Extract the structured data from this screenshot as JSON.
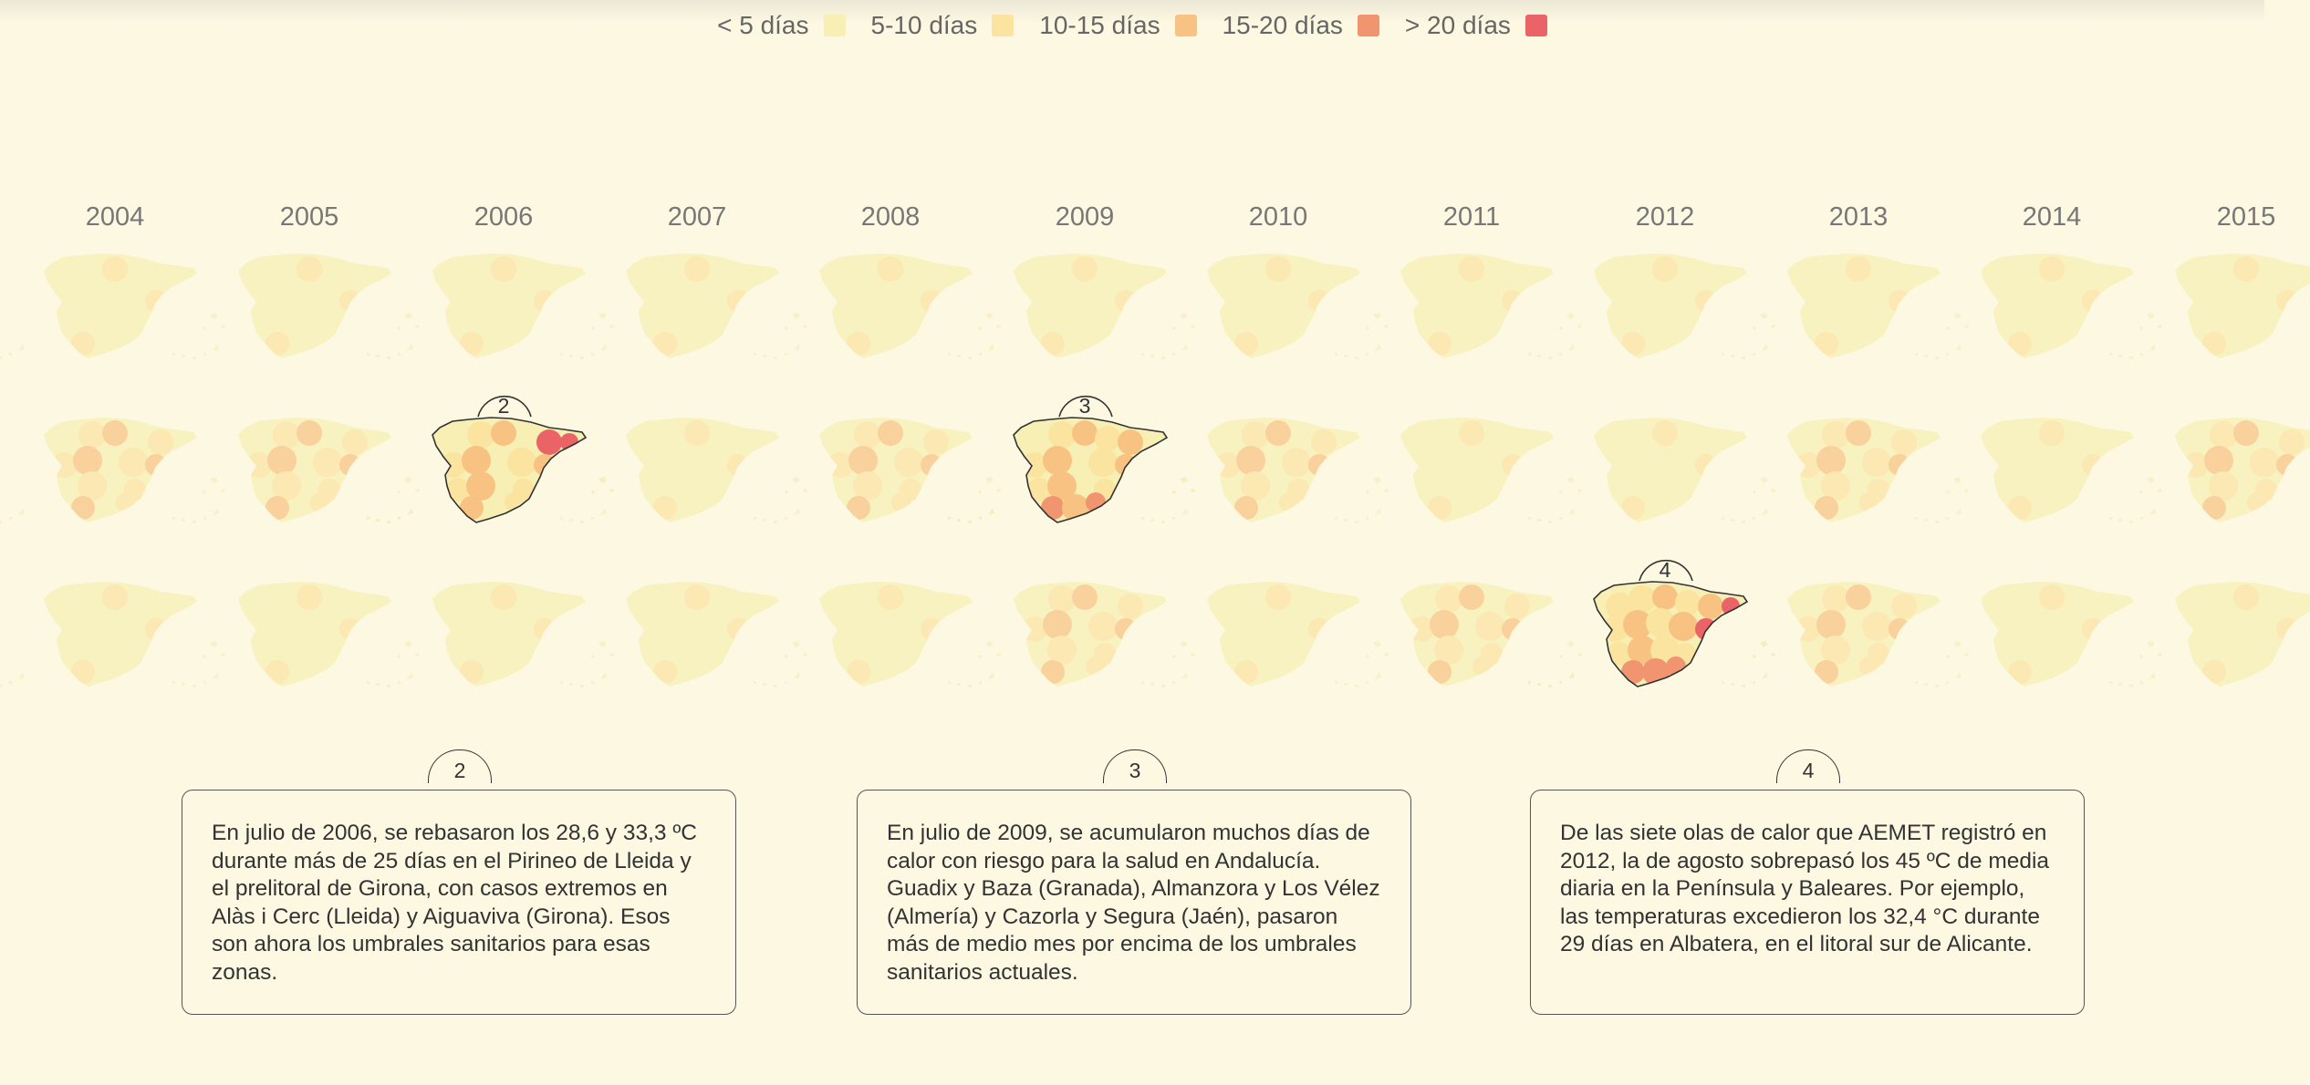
{
  "legend": [
    {
      "label": "< 5 días",
      "color": "#f7efb3"
    },
    {
      "label": "5-10 días",
      "color": "#fbe3a0"
    },
    {
      "label": "10-15 días",
      "color": "#f8c382"
    },
    {
      "label": "15-20 días",
      "color": "#f19470"
    },
    {
      "label": "> 20 días",
      "color": "#ea6467"
    }
  ],
  "years": [
    "2004",
    "2005",
    "2006",
    "2007",
    "2008",
    "2009",
    "2010",
    "2011",
    "2012",
    "2013",
    "2014",
    "2015"
  ],
  "highlights": [
    {
      "number": "2",
      "year": "2006",
      "text": "En julio de 2006, se rebasaron los 28,6 y 33,3 ºC durante más de 25 días en el Pirineo de Lleida y el prelitoral de Girona, con casos extremos en Alàs i Cerc (Lleida) y Aiguaviva (Girona). Esos son ahora los umbrales sanitarios para esas zonas."
    },
    {
      "number": "3",
      "year": "2009",
      "text": "En julio de 2009, se acumularon muchos días de calor con riesgo para la salud en Andalucía. Guadix y Baza (Granada), Almanzora y Los Vélez (Almería) y Cazorla y Segura (Jaén), pasaron más de medio mes por encima de los umbrales sanitarios actuales."
    },
    {
      "number": "4",
      "year": "2012",
      "text": "De las siete olas de calor que AEMET registró en 2012, la de agosto sobrepasó los 45 ºC de media diaria en la Península y Baleares. Por ejemplo, las temperaturas excedieron los 32,4 °C durante 29 días en Albatera, en el litoral sur de Alicante."
    }
  ]
}
